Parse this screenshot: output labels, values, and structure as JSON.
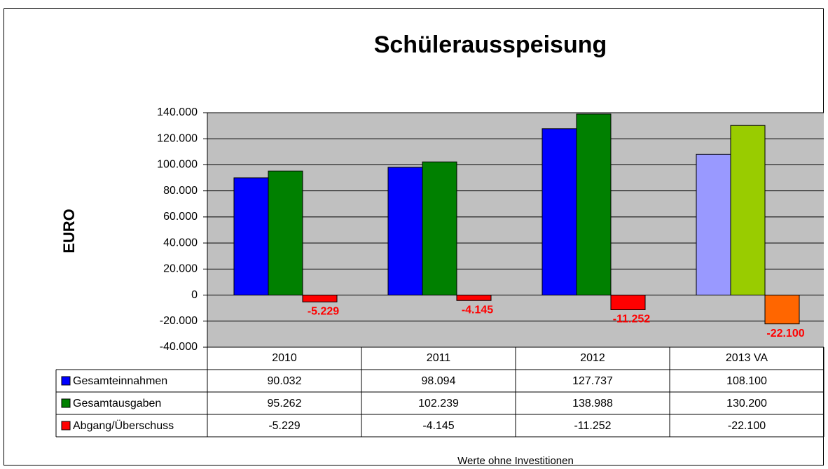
{
  "chart_data": {
    "type": "bar",
    "title": "Schülerausspeisung",
    "y_label": "EURO",
    "note": "Werte ohne Investitionen",
    "categories": [
      "2010",
      "2011",
      "2012",
      "2013 VA"
    ],
    "series": [
      {
        "name": "Gesamteinnahmen",
        "color": "#0000ff",
        "colors": [
          "#0000ff",
          "#0000ff",
          "#0000ff",
          "#9999ff"
        ],
        "values": [
          90032,
          98094,
          127737,
          108100
        ],
        "value_labels": [
          "90.032",
          "98.094",
          "127.737",
          "108.100"
        ]
      },
      {
        "name": "Gesamtausgaben",
        "color": "#008000",
        "colors": [
          "#008000",
          "#008000",
          "#008000",
          "#99cc00"
        ],
        "values": [
          95262,
          102239,
          138988,
          130200
        ],
        "value_labels": [
          "95.262",
          "102.239",
          "138.988",
          "130.200"
        ]
      },
      {
        "name": "Abgang/Überschuss",
        "color": "#ff0000",
        "colors": [
          "#ff0000",
          "#ff0000",
          "#ff0000",
          "#ff6600"
        ],
        "values": [
          -5229,
          -4145,
          -11252,
          -22100
        ],
        "value_labels": [
          "-5.229",
          "-4.145",
          "-11.252",
          "-22.100"
        ],
        "data_labels": true
      }
    ],
    "ylim": [
      -40000,
      140000
    ],
    "yticks": [
      {
        "value": -40000,
        "label": "-40.000"
      },
      {
        "value": -20000,
        "label": "-20.000"
      },
      0,
      {
        "value": 20000,
        "label": "20.000"
      },
      {
        "value": 40000,
        "label": "40.000"
      },
      {
        "value": 60000,
        "label": "60.000"
      },
      {
        "value": 80000,
        "label": "80.000"
      },
      {
        "value": 100000,
        "label": "100.000"
      },
      {
        "value": 120000,
        "label": "120.000"
      },
      {
        "value": 140000,
        "label": "140.000"
      }
    ],
    "grid": true,
    "data_table": true
  }
}
